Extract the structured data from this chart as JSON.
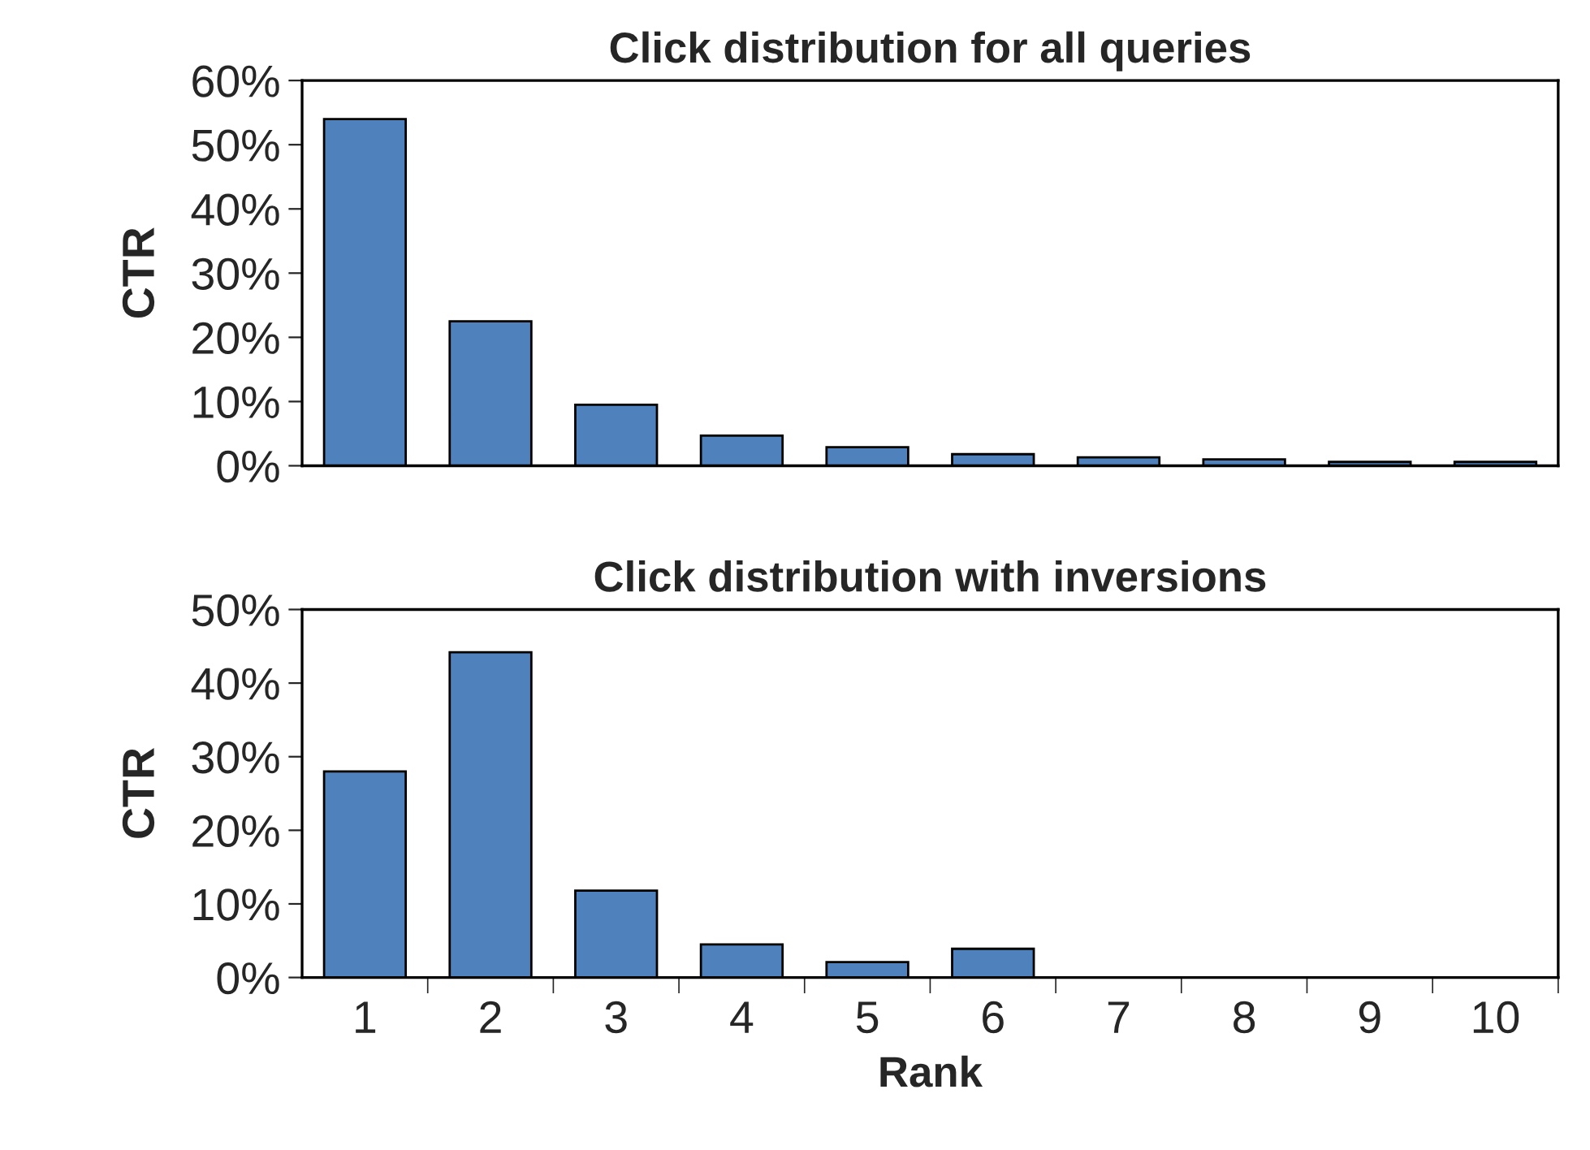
{
  "chart_data": [
    {
      "type": "bar",
      "title": "Click distribution for all queries",
      "ylabel": "CTR",
      "categories": [
        "1",
        "2",
        "3",
        "4",
        "5",
        "6",
        "7",
        "8",
        "9",
        "10"
      ],
      "values": [
        54,
        22.5,
        9.5,
        4.7,
        2.9,
        1.8,
        1.3,
        1.0,
        0.6,
        0.6
      ],
      "color": "#4f81bd",
      "ylim": [
        0,
        60
      ],
      "yticks": [
        {
          "value": 0,
          "label": "0%"
        },
        {
          "value": 10,
          "label": "10%"
        },
        {
          "value": 20,
          "label": "20%"
        },
        {
          "value": 30,
          "label": "30%"
        },
        {
          "value": 40,
          "label": "40%"
        },
        {
          "value": 50,
          "label": "50%"
        },
        {
          "value": 60,
          "label": "60%"
        }
      ],
      "tick_labels": "y",
      "grid": false
    },
    {
      "type": "bar",
      "title": "Click distribution with inversions",
      "ylabel": "CTR",
      "xlabel": "Rank",
      "categories": [
        "1",
        "2",
        "3",
        "4",
        "5",
        "6",
        "7",
        "8",
        "9",
        "10"
      ],
      "values": [
        28,
        44.2,
        11.8,
        4.5,
        2.1,
        3.9,
        null,
        null,
        null,
        null
      ],
      "color": "#4f81bd",
      "ylim": [
        0,
        50
      ],
      "yticks": [
        {
          "value": 0,
          "label": "0%"
        },
        {
          "value": 10,
          "label": "10%"
        },
        {
          "value": 20,
          "label": "20%"
        },
        {
          "value": 30,
          "label": "30%"
        },
        {
          "value": 40,
          "label": "40%"
        },
        {
          "value": 50,
          "label": "50%"
        }
      ],
      "grid": false
    }
  ]
}
